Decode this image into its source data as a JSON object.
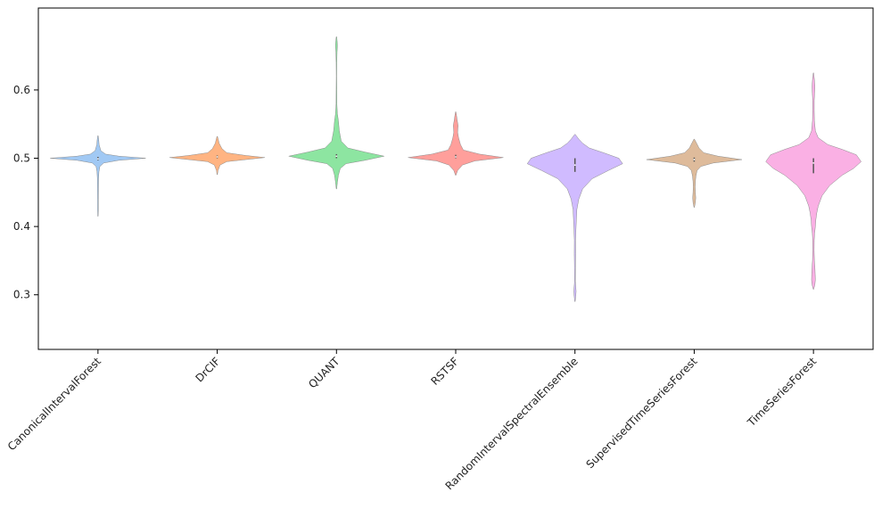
{
  "chart_data": {
    "type": "violin",
    "categories": [
      "CanonicalIntervalForest",
      "DrCIF",
      "QUANT",
      "RSTSF",
      "RandomIntervalSpectralEnsemble",
      "SupervisedTimeSeriesForest",
      "TimeSeriesForest"
    ],
    "colors": [
      "#a1c9f4",
      "#ffb482",
      "#8de5a1",
      "#ff9f9b",
      "#d0bbff",
      "#debb9b",
      "#fab0e4"
    ],
    "ylim": [
      0.22,
      0.72
    ],
    "yticks": [
      0.3,
      0.4,
      0.5,
      0.6
    ],
    "ytick_labels": [
      "0.3",
      "0.4",
      "0.5",
      "0.6"
    ],
    "violins": [
      {
        "name": "CanonicalIntervalForest",
        "median": 0.499,
        "q1": 0.497,
        "q3": 0.502,
        "profile": [
          [
            0.415,
            0.002
          ],
          [
            0.425,
            0.004
          ],
          [
            0.44,
            0.004
          ],
          [
            0.455,
            0.005
          ],
          [
            0.47,
            0.006
          ],
          [
            0.48,
            0.01
          ],
          [
            0.488,
            0.02
          ],
          [
            0.493,
            0.06
          ],
          [
            0.497,
            0.22
          ],
          [
            0.5,
            0.5
          ],
          [
            0.503,
            0.22
          ],
          [
            0.506,
            0.08
          ],
          [
            0.511,
            0.03
          ],
          [
            0.52,
            0.012
          ],
          [
            0.527,
            0.008
          ],
          [
            0.533,
            0.002
          ]
        ]
      },
      {
        "name": "DrCIF",
        "median": 0.502,
        "q1": 0.5,
        "q3": 0.504,
        "profile": [
          [
            0.476,
            0.002
          ],
          [
            0.482,
            0.008
          ],
          [
            0.49,
            0.03
          ],
          [
            0.495,
            0.1
          ],
          [
            0.498,
            0.3
          ],
          [
            0.501,
            0.5
          ],
          [
            0.504,
            0.3
          ],
          [
            0.508,
            0.1
          ],
          [
            0.514,
            0.05
          ],
          [
            0.522,
            0.02
          ],
          [
            0.528,
            0.01
          ],
          [
            0.532,
            0.002
          ]
        ]
      },
      {
        "name": "QUANT",
        "median": 0.503,
        "q1": 0.5,
        "q3": 0.506,
        "profile": [
          [
            0.455,
            0.002
          ],
          [
            0.465,
            0.01
          ],
          [
            0.475,
            0.02
          ],
          [
            0.485,
            0.04
          ],
          [
            0.492,
            0.1
          ],
          [
            0.497,
            0.3
          ],
          [
            0.503,
            0.5
          ],
          [
            0.509,
            0.3
          ],
          [
            0.515,
            0.12
          ],
          [
            0.525,
            0.05
          ],
          [
            0.54,
            0.03
          ],
          [
            0.555,
            0.02
          ],
          [
            0.565,
            0.01
          ],
          [
            0.58,
            0.004
          ],
          [
            0.6,
            0.003
          ],
          [
            0.62,
            0.002
          ],
          [
            0.64,
            0.003
          ],
          [
            0.655,
            0.006
          ],
          [
            0.665,
            0.01
          ],
          [
            0.672,
            0.007
          ],
          [
            0.678,
            0.002
          ]
        ]
      },
      {
        "name": "RSTSF",
        "median": 0.502,
        "q1": 0.5,
        "q3": 0.505,
        "profile": [
          [
            0.475,
            0.002
          ],
          [
            0.482,
            0.02
          ],
          [
            0.49,
            0.07
          ],
          [
            0.496,
            0.2
          ],
          [
            0.501,
            0.5
          ],
          [
            0.506,
            0.25
          ],
          [
            0.512,
            0.08
          ],
          [
            0.52,
            0.05
          ],
          [
            0.53,
            0.03
          ],
          [
            0.538,
            0.02
          ],
          [
            0.548,
            0.025
          ],
          [
            0.556,
            0.015
          ],
          [
            0.563,
            0.008
          ],
          [
            0.568,
            0.002
          ]
        ]
      },
      {
        "name": "RandomIntervalSpectralEnsemble",
        "median": 0.49,
        "q1": 0.48,
        "q3": 0.5,
        "profile": [
          [
            0.29,
            0.002
          ],
          [
            0.298,
            0.008
          ],
          [
            0.305,
            0.012
          ],
          [
            0.312,
            0.008
          ],
          [
            0.32,
            0.004
          ],
          [
            0.34,
            0.005
          ],
          [
            0.36,
            0.007
          ],
          [
            0.38,
            0.006
          ],
          [
            0.395,
            0.01
          ],
          [
            0.41,
            0.015
          ],
          [
            0.425,
            0.02
          ],
          [
            0.44,
            0.04
          ],
          [
            0.455,
            0.08
          ],
          [
            0.47,
            0.18
          ],
          [
            0.482,
            0.35
          ],
          [
            0.492,
            0.5
          ],
          [
            0.5,
            0.46
          ],
          [
            0.508,
            0.3
          ],
          [
            0.515,
            0.15
          ],
          [
            0.522,
            0.08
          ],
          [
            0.528,
            0.04
          ],
          [
            0.535,
            0.002
          ]
        ]
      },
      {
        "name": "SupervisedTimeSeriesForest",
        "median": 0.498,
        "q1": 0.495,
        "q3": 0.501,
        "profile": [
          [
            0.428,
            0.002
          ],
          [
            0.435,
            0.012
          ],
          [
            0.442,
            0.016
          ],
          [
            0.45,
            0.012
          ],
          [
            0.458,
            0.01
          ],
          [
            0.466,
            0.012
          ],
          [
            0.474,
            0.018
          ],
          [
            0.482,
            0.03
          ],
          [
            0.488,
            0.07
          ],
          [
            0.493,
            0.2
          ],
          [
            0.498,
            0.5
          ],
          [
            0.503,
            0.25
          ],
          [
            0.508,
            0.1
          ],
          [
            0.515,
            0.05
          ],
          [
            0.522,
            0.025
          ],
          [
            0.528,
            0.002
          ]
        ]
      },
      {
        "name": "TimeSeriesForest",
        "median": 0.493,
        "q1": 0.478,
        "q3": 0.5,
        "profile": [
          [
            0.308,
            0.002
          ],
          [
            0.315,
            0.015
          ],
          [
            0.322,
            0.02
          ],
          [
            0.33,
            0.018
          ],
          [
            0.34,
            0.015
          ],
          [
            0.35,
            0.01
          ],
          [
            0.365,
            0.007
          ],
          [
            0.38,
            0.008
          ],
          [
            0.39,
            0.012
          ],
          [
            0.4,
            0.02
          ],
          [
            0.41,
            0.025
          ],
          [
            0.42,
            0.035
          ],
          [
            0.43,
            0.05
          ],
          [
            0.445,
            0.09
          ],
          [
            0.46,
            0.17
          ],
          [
            0.475,
            0.3
          ],
          [
            0.485,
            0.42
          ],
          [
            0.495,
            0.5
          ],
          [
            0.505,
            0.45
          ],
          [
            0.513,
            0.3
          ],
          [
            0.52,
            0.15
          ],
          [
            0.53,
            0.05
          ],
          [
            0.54,
            0.02
          ],
          [
            0.555,
            0.01
          ],
          [
            0.57,
            0.008
          ],
          [
            0.585,
            0.008
          ],
          [
            0.595,
            0.012
          ],
          [
            0.605,
            0.015
          ],
          [
            0.615,
            0.01
          ],
          [
            0.625,
            0.002
          ]
        ]
      }
    ]
  }
}
